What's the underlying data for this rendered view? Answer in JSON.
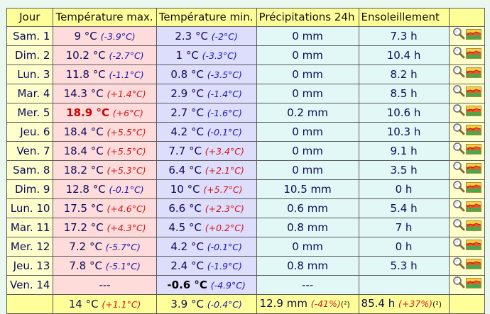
{
  "header": {
    "jour": "Jour",
    "tmax": "Température max.",
    "tmin": "Température min.",
    "precip": "Précipitations 24h",
    "sun": "Ensoleillement"
  },
  "rows": [
    {
      "day": "Sam. 1",
      "tmax": "9 °C",
      "tmax_dev": "(-3.9°C)",
      "tmin": "2.3 °C",
      "tmin_dev": "(-2°C)",
      "precip": "0 mm",
      "sun": "7.3 h"
    },
    {
      "day": "Dim. 2",
      "tmax": "10.2 °C",
      "tmax_dev": "(-2.7°C)",
      "tmin": "1 °C",
      "tmin_dev": "(-3.3°C)",
      "precip": "0 mm",
      "sun": "10.4 h"
    },
    {
      "day": "Lun. 3",
      "tmax": "11.8 °C",
      "tmax_dev": "(-1.1°C)",
      "tmin": "0.8 °C",
      "tmin_dev": "(-3.5°C)",
      "precip": "0 mm",
      "sun": "8.2 h"
    },
    {
      "day": "Mar. 4",
      "tmax": "14.3 °C",
      "tmax_dev": "(+1.4°C)",
      "tmin": "2.9 °C",
      "tmin_dev": "(-1.4°C)",
      "precip": "0 mm",
      "sun": "8.5 h"
    },
    {
      "day": "Mer. 5",
      "tmax": "18.9 °C",
      "tmax_dev": "(+6°C)",
      "tmin": "2.7 °C",
      "tmin_dev": "(-1.6°C)",
      "precip": "0.2 mm",
      "sun": "10.6 h"
    },
    {
      "day": "Jeu. 6",
      "tmax": "18.4 °C",
      "tmax_dev": "(+5.5°C)",
      "tmin": "4.2 °C",
      "tmin_dev": "(-0.1°C)",
      "precip": "0 mm",
      "sun": "10.3 h"
    },
    {
      "day": "Ven. 7",
      "tmax": "18.4 °C",
      "tmax_dev": "(+5.5°C)",
      "tmin": "7.7 °C",
      "tmin_dev": "(+3.4°C)",
      "precip": "0 mm",
      "sun": "9.1 h"
    },
    {
      "day": "Sam. 8",
      "tmax": "18.2 °C",
      "tmax_dev": "(+5.3°C)",
      "tmin": "6.4 °C",
      "tmin_dev": "(+2.1°C)",
      "precip": "0 mm",
      "sun": "3.5 h"
    },
    {
      "day": "Dim. 9",
      "tmax": "12.8 °C",
      "tmax_dev": "(-0.1°C)",
      "tmin": "10 °C",
      "tmin_dev": "(+5.7°C)",
      "precip": "10.5 mm",
      "sun": "0 h"
    },
    {
      "day": "Lun. 10",
      "tmax": "17.5 °C",
      "tmax_dev": "(+4.6°C)",
      "tmin": "6.6 °C",
      "tmin_dev": "(+2.3°C)",
      "precip": "0.6 mm",
      "sun": "5.4 h"
    },
    {
      "day": "Mar. 11",
      "tmax": "17.2 °C",
      "tmax_dev": "(+4.3°C)",
      "tmin": "4.5 °C",
      "tmin_dev": "(+0.2°C)",
      "precip": "0.8 mm",
      "sun": "7 h"
    },
    {
      "day": "Mer. 12",
      "tmax": "7.2 °C",
      "tmax_dev": "(-5.7°C)",
      "tmin": "4.2 °C",
      "tmin_dev": "(-0.1°C)",
      "precip": "0 mm",
      "sun": "0 h"
    },
    {
      "day": "Jeu. 13",
      "tmax": "7.8 °C",
      "tmax_dev": "(-5.1°C)",
      "tmin": "2.4 °C",
      "tmin_dev": "(-1.9°C)",
      "precip": "0.8 mm",
      "sun": "5.3 h"
    },
    {
      "day": "Ven. 14",
      "tmax": "---",
      "tmax_dev": "",
      "tmin": "-0.6 °C",
      "tmin_dev": "(-4.9°C)",
      "precip": "---",
      "sun": ""
    }
  ],
  "summary": {
    "tmax": "14 °C",
    "tmax_dev": "(+1.1°C)",
    "tmin": "3.9 °C",
    "tmin_dev": "(-0.4°C)",
    "precip": "12.9 mm",
    "precip_dev": "(-41%)",
    "precip_note": "(²)",
    "sun": "85.4 h",
    "sun_dev": "(+37%)",
    "sun_note": "(²)"
  },
  "icons": [
    "magnifier-icon",
    "chart-thumbnail-icon"
  ],
  "colors": {
    "page_bg": "#e9f7ee",
    "header_bg": "#ffff99",
    "day_bg": "#ffffcc",
    "tmax_bg": "#ffdcdc",
    "tmin_bg": "#ddddfc",
    "other_bg": "#e2f8f6",
    "positive": "#d01818",
    "negative": "#1818b0"
  }
}
